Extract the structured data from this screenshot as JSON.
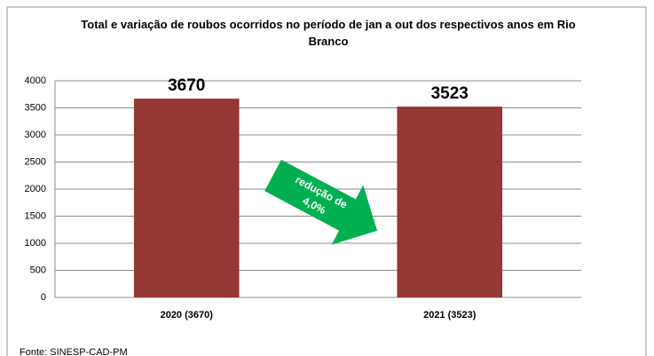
{
  "chart_data": {
    "type": "bar",
    "title": "Total e variação de roubos ocorridos no período de jan a out dos respectivos anos em Rio Branco",
    "categories": [
      "2020 (3670)",
      "2021 (3523)"
    ],
    "values": [
      3670,
      3523
    ],
    "color": "#953735",
    "ylim": [
      0,
      4000
    ],
    "yticks": [
      0,
      500,
      1000,
      1500,
      2000,
      2500,
      3000,
      3500,
      4000
    ],
    "grid": true,
    "annotation": [
      "redução de",
      "4,0%"
    ],
    "source": "Fonte: SINESP-CAD-PM"
  }
}
